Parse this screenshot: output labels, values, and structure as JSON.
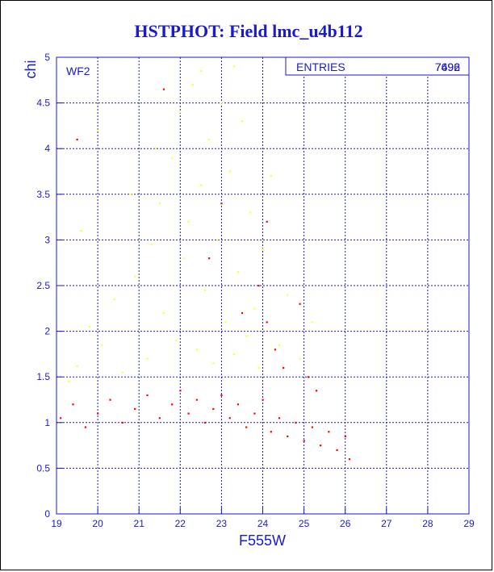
{
  "chart_data": {
    "type": "scatter",
    "title": "HSTPHOT: Field lmc_u4b112",
    "xlabel": "F555W",
    "ylabel": "chi",
    "xlim": [
      19,
      29
    ],
    "ylim": [
      0,
      5
    ],
    "x_ticks": [
      19,
      20,
      21,
      22,
      23,
      24,
      25,
      26,
      27,
      28,
      29
    ],
    "y_ticks": [
      0,
      0.5,
      1,
      1.5,
      2,
      2.5,
      3,
      3.5,
      4,
      4.5,
      5
    ],
    "grid": true,
    "panel_label": "WF2",
    "stats_box": {
      "label": "ENTRIES",
      "values": [
        "7492",
        "7696"
      ]
    },
    "series": [
      {
        "color": "#ffff30",
        "points": [
          [
            19.3,
            1.45
          ],
          [
            19.5,
            1.62
          ],
          [
            19.8,
            2.05
          ],
          [
            20.1,
            1.85
          ],
          [
            20.4,
            2.35
          ],
          [
            20.6,
            1.55
          ],
          [
            20.9,
            2.6
          ],
          [
            21.2,
            1.7
          ],
          [
            21.3,
            2.95
          ],
          [
            21.5,
            3.4
          ],
          [
            21.6,
            2.2
          ],
          [
            21.8,
            3.9
          ],
          [
            21.9,
            1.9
          ],
          [
            22.0,
            4.4
          ],
          [
            22.1,
            2.8
          ],
          [
            22.2,
            3.2
          ],
          [
            22.3,
            4.7
          ],
          [
            22.4,
            1.8
          ],
          [
            22.5,
            3.6
          ],
          [
            22.6,
            2.45
          ],
          [
            22.7,
            4.1
          ],
          [
            22.8,
            1.65
          ],
          [
            22.9,
            3.0
          ],
          [
            23.0,
            4.5
          ],
          [
            23.1,
            2.1
          ],
          [
            23.2,
            3.75
          ],
          [
            23.3,
            1.75
          ],
          [
            23.4,
            2.65
          ],
          [
            23.5,
            4.3
          ],
          [
            23.6,
            1.95
          ],
          [
            23.7,
            3.3
          ],
          [
            23.8,
            2.25
          ],
          [
            23.9,
            1.6
          ],
          [
            24.0,
            2.9
          ],
          [
            24.2,
            3.7
          ],
          [
            24.4,
            1.85
          ],
          [
            24.6,
            2.4
          ],
          [
            24.9,
            1.7
          ],
          [
            25.2,
            2.1
          ],
          [
            19.6,
            3.1
          ],
          [
            20.0,
            4.2
          ],
          [
            20.8,
            3.5
          ],
          [
            21.4,
            4.0
          ],
          [
            22.5,
            4.85
          ],
          [
            23.3,
            4.9
          ]
        ]
      },
      {
        "color": "#ff0000",
        "points": [
          [
            19.1,
            1.05
          ],
          [
            19.4,
            1.2
          ],
          [
            19.7,
            0.95
          ],
          [
            20.0,
            1.1
          ],
          [
            20.3,
            1.25
          ],
          [
            20.6,
            1.0
          ],
          [
            20.9,
            1.15
          ],
          [
            21.2,
            1.3
          ],
          [
            21.5,
            1.05
          ],
          [
            21.8,
            1.2
          ],
          [
            22.0,
            1.35
          ],
          [
            22.2,
            1.1
          ],
          [
            22.4,
            1.25
          ],
          [
            22.6,
            1.0
          ],
          [
            22.8,
            1.15
          ],
          [
            23.0,
            1.3
          ],
          [
            23.2,
            1.05
          ],
          [
            23.4,
            1.2
          ],
          [
            23.6,
            0.95
          ],
          [
            23.8,
            1.1
          ],
          [
            24.0,
            1.25
          ],
          [
            24.2,
            0.9
          ],
          [
            24.4,
            1.05
          ],
          [
            24.6,
            0.85
          ],
          [
            24.8,
            1.0
          ],
          [
            25.0,
            0.8
          ],
          [
            25.2,
            0.95
          ],
          [
            25.4,
            0.75
          ],
          [
            25.6,
            0.9
          ],
          [
            25.8,
            0.7
          ],
          [
            26.0,
            0.85
          ],
          [
            24.5,
            1.6
          ],
          [
            24.1,
            2.1
          ],
          [
            23.9,
            2.5
          ],
          [
            24.3,
            1.8
          ],
          [
            22.7,
            2.8
          ],
          [
            23.5,
            2.2
          ],
          [
            25.1,
            1.5
          ],
          [
            19.5,
            4.1
          ],
          [
            21.6,
            4.65
          ],
          [
            24.9,
            2.3
          ],
          [
            23.0,
            3.4
          ],
          [
            24.1,
            3.2
          ],
          [
            25.3,
            1.35
          ],
          [
            26.1,
            0.6
          ]
        ]
      }
    ]
  }
}
